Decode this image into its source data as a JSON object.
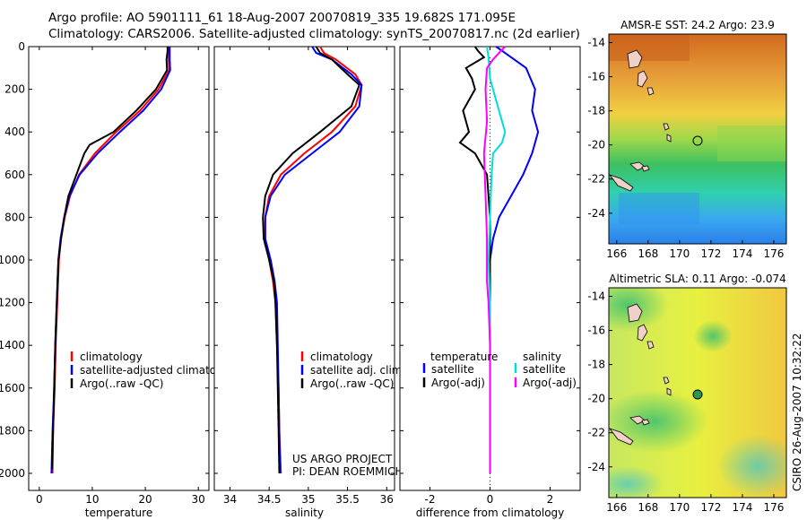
{
  "title": {
    "line1": "Argo profile: AO 5901111_61 18-Aug-2007 20070819_335 19.682S 171.095E",
    "line2": "Climatology: CARS2006. Satellite-adjusted climatology: synTS_20070817.nc (2d earlier)"
  },
  "side_label": "CSIRO 26-Aug-2007 10:32:22",
  "depth_ticks": [
    0,
    200,
    400,
    600,
    800,
    1000,
    1200,
    1400,
    1600,
    1800,
    2000
  ],
  "chart_data": [
    {
      "type": "line",
      "name": "temperature",
      "xlabel": "temperature",
      "xlim": [
        -2,
        32
      ],
      "ylim": [
        0,
        2080
      ],
      "xticks": [
        0,
        10,
        20,
        30
      ],
      "legend": [
        "climatology",
        "satellite-adjusted climatology",
        "Argo(..raw -QC)"
      ],
      "series": [
        {
          "name": "climatology",
          "color": "#ff0000",
          "points": [
            [
              24.4,
              0
            ],
            [
              24.4,
              20
            ],
            [
              24.4,
              60
            ],
            [
              24.5,
              110
            ],
            [
              22.5,
              200
            ],
            [
              19,
              300
            ],
            [
              14.5,
              400
            ],
            [
              10.5,
              500
            ],
            [
              7.5,
              600
            ],
            [
              5.8,
              700
            ],
            [
              4.8,
              800
            ],
            [
              4.1,
              900
            ],
            [
              3.7,
              1000
            ],
            [
              3.4,
              1200
            ],
            [
              3.1,
              1400
            ],
            [
              2.9,
              1600
            ],
            [
              2.6,
              1800
            ],
            [
              2.5,
              2000
            ]
          ]
        },
        {
          "name": "satellite-adjusted climatology",
          "color": "#0000ff",
          "points": [
            [
              24.6,
              0
            ],
            [
              24.6,
              20
            ],
            [
              24.6,
              60
            ],
            [
              24.7,
              110
            ],
            [
              23,
              200
            ],
            [
              19.6,
              300
            ],
            [
              15.2,
              400
            ],
            [
              11,
              500
            ],
            [
              7.6,
              600
            ],
            [
              5.7,
              700
            ],
            [
              4.7,
              800
            ],
            [
              4,
              900
            ],
            [
              3.6,
              1000
            ],
            [
              3.3,
              1200
            ],
            [
              3,
              1400
            ],
            [
              2.8,
              1600
            ],
            [
              2.5,
              1800
            ],
            [
              2.3,
              2000
            ]
          ]
        },
        {
          "name": "Argo(..raw -QC)",
          "color": "#000000",
          "points": [
            [
              24.2,
              0
            ],
            [
              24.2,
              20
            ],
            [
              24,
              60
            ],
            [
              24.1,
              110
            ],
            [
              22,
              200
            ],
            [
              18.3,
              300
            ],
            [
              14,
              400
            ],
            [
              9.5,
              460
            ],
            [
              8.5,
              500
            ],
            [
              7,
              600
            ],
            [
              5.5,
              700
            ],
            [
              4.7,
              800
            ],
            [
              4.1,
              900
            ],
            [
              3.6,
              1000
            ],
            [
              3.3,
              1200
            ],
            [
              3,
              1400
            ],
            [
              2.8,
              1600
            ],
            [
              2.6,
              1800
            ],
            [
              2.4,
              1980
            ]
          ]
        }
      ]
    },
    {
      "type": "line",
      "name": "salinity",
      "xlabel": "salinity",
      "xlim": [
        33.8,
        36.1
      ],
      "ylim": [
        0,
        2080
      ],
      "xticks": [
        34,
        34.5,
        35,
        35.5,
        36
      ],
      "legend": [
        "climatology",
        "satellite adj. clim.",
        "Argo(..raw -QC)"
      ],
      "annotation": [
        "US ARGO PROJECT",
        "PI: DEAN ROEMMICH"
      ],
      "series": [
        {
          "name": "climatology",
          "color": "#ff0000",
          "points": [
            [
              35.15,
              0
            ],
            [
              35.2,
              30
            ],
            [
              35.35,
              60
            ],
            [
              35.6,
              130
            ],
            [
              35.68,
              180
            ],
            [
              35.6,
              280
            ],
            [
              35.3,
              400
            ],
            [
              34.95,
              500
            ],
            [
              34.65,
              600
            ],
            [
              34.5,
              700
            ],
            [
              34.45,
              800
            ],
            [
              34.45,
              900
            ],
            [
              34.5,
              1000
            ],
            [
              34.55,
              1100
            ],
            [
              34.58,
              1200
            ],
            [
              34.6,
              1400
            ],
            [
              34.62,
              1600
            ],
            [
              34.63,
              1800
            ],
            [
              34.65,
              2000
            ]
          ]
        },
        {
          "name": "satellite adj. clim.",
          "color": "#0000ff",
          "points": [
            [
              35.05,
              0
            ],
            [
              35.1,
              30
            ],
            [
              35.3,
              60
            ],
            [
              35.55,
              130
            ],
            [
              35.68,
              180
            ],
            [
              35.65,
              280
            ],
            [
              35.4,
              400
            ],
            [
              35.05,
              500
            ],
            [
              34.7,
              600
            ],
            [
              34.52,
              700
            ],
            [
              34.45,
              800
            ],
            [
              34.45,
              900
            ],
            [
              34.52,
              1000
            ],
            [
              34.57,
              1100
            ],
            [
              34.6,
              1200
            ],
            [
              34.61,
              1400
            ],
            [
              34.62,
              1600
            ],
            [
              34.63,
              1800
            ],
            [
              34.64,
              2000
            ]
          ]
        },
        {
          "name": "Argo(..raw -QC)",
          "color": "#000000",
          "points": [
            [
              35.1,
              0
            ],
            [
              35.15,
              30
            ],
            [
              35.3,
              60
            ],
            [
              35.5,
              130
            ],
            [
              35.65,
              180
            ],
            [
              35.55,
              280
            ],
            [
              35.15,
              400
            ],
            [
              34.8,
              500
            ],
            [
              34.55,
              600
            ],
            [
              34.45,
              700
            ],
            [
              34.42,
              800
            ],
            [
              34.43,
              900
            ],
            [
              34.5,
              1000
            ],
            [
              34.56,
              1100
            ],
            [
              34.58,
              1200
            ],
            [
              34.6,
              1400
            ],
            [
              34.61,
              1600
            ],
            [
              34.62,
              1800
            ],
            [
              34.63,
              2000
            ]
          ]
        }
      ]
    },
    {
      "type": "line",
      "name": "difference from climatology",
      "xlabel": "difference from climatology",
      "xlim": [
        -3,
        3
      ],
      "ylim": [
        0,
        2080
      ],
      "xticks": [
        -2,
        0,
        2
      ],
      "legend": [
        "temperature",
        "satellite",
        "Argo(-adj)",
        "salinity",
        "satellite",
        "Argo(-adj)"
      ],
      "series": [
        {
          "name": "temperature satellite",
          "color": "#0000ff",
          "points": [
            [
              0.2,
              0
            ],
            [
              0.5,
              30
            ],
            [
              1.2,
              100
            ],
            [
              1.5,
              200
            ],
            [
              1.4,
              300
            ],
            [
              1.6,
              400
            ],
            [
              1.4,
              500
            ],
            [
              1.1,
              600
            ],
            [
              0.7,
              700
            ],
            [
              0.3,
              800
            ],
            [
              0.1,
              900
            ],
            [
              0,
              1000
            ],
            [
              0,
              1200
            ],
            [
              0,
              1500
            ],
            [
              0,
              2000
            ]
          ]
        },
        {
          "name": "temperature Argo(-adj)",
          "color": "#000000",
          "points": [
            [
              -0.5,
              0
            ],
            [
              -0.4,
              20
            ],
            [
              -0.2,
              50
            ],
            [
              -0.8,
              100
            ],
            [
              -0.6,
              150
            ],
            [
              -0.5,
              200
            ],
            [
              -0.9,
              300
            ],
            [
              -0.7,
              400
            ],
            [
              -1,
              450
            ],
            [
              -0.5,
              500
            ],
            [
              -0.1,
              600
            ],
            [
              0,
              800
            ],
            [
              0,
              1000
            ],
            [
              0,
              1200
            ],
            [
              0,
              1500
            ],
            [
              0,
              2000
            ]
          ]
        },
        {
          "name": "salinity satellite",
          "color": "#00dddd",
          "points": [
            [
              -0.1,
              0
            ],
            [
              -0.05,
              50
            ],
            [
              0,
              150
            ],
            [
              0.3,
              300
            ],
            [
              0.5,
              400
            ],
            [
              0.4,
              450
            ],
            [
              0.1,
              500
            ],
            [
              0.05,
              600
            ],
            [
              0,
              800
            ],
            [
              -0.05,
              1000
            ],
            [
              0,
              1200
            ],
            [
              0,
              1500
            ],
            [
              0,
              2000
            ]
          ]
        },
        {
          "name": "salinity Argo(-adj)",
          "color": "#ff00ff",
          "points": [
            [
              0.5,
              0
            ],
            [
              0.3,
              30
            ],
            [
              0.1,
              60
            ],
            [
              -0.1,
              100
            ],
            [
              -0.15,
              200
            ],
            [
              -0.1,
              350
            ],
            [
              -0.2,
              500
            ],
            [
              -0.15,
              700
            ],
            [
              -0.1,
              900
            ],
            [
              -0.1,
              1100
            ],
            [
              -0.05,
              1200
            ],
            [
              0,
              1400
            ],
            [
              0,
              2000
            ]
          ]
        }
      ]
    },
    {
      "type": "heatmap",
      "name": "AMSR-E SST map",
      "title": "AMSR-E SST: 24.2 Argo: 23.9",
      "xlim": [
        165.5,
        176.8
      ],
      "ylim": [
        -25.8,
        -13.5
      ],
      "xticks": [
        166,
        168,
        170,
        172,
        174,
        176
      ],
      "yticks": [
        -14,
        -16,
        -18,
        -20,
        -22,
        -24
      ],
      "marker": {
        "lon": 171.095,
        "lat": -19.682
      }
    },
    {
      "type": "heatmap",
      "name": "Altimetric SLA map",
      "title": "Altimetric SLA: 0.11 Argo: -0.074",
      "xlim": [
        165.5,
        176.8
      ],
      "ylim": [
        -25.8,
        -13.5
      ],
      "xticks": [
        166,
        168,
        170,
        172,
        174,
        176
      ],
      "yticks": [
        -14,
        -16,
        -18,
        -20,
        -22,
        -24
      ],
      "marker": {
        "lon": 171.095,
        "lat": -19.682
      }
    }
  ]
}
